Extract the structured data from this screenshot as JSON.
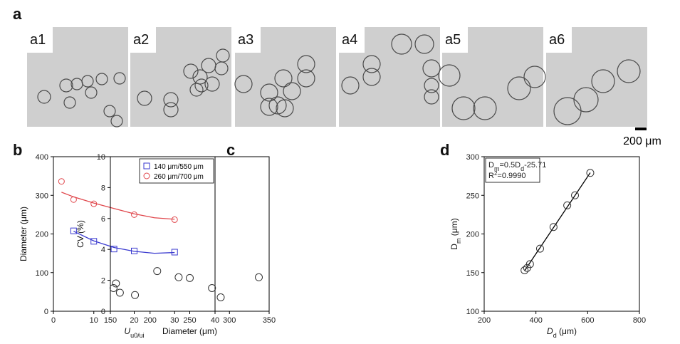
{
  "panels": {
    "a": "a",
    "b": "b",
    "c": "c",
    "d": "d"
  },
  "images": [
    "a1",
    "a2",
    "a3",
    "a4",
    "a5",
    "a6"
  ],
  "scale_bar": "200 μm",
  "chart_data": [
    {
      "type": "scatter",
      "xlabel_parts": [
        "U",
        "u0/ui"
      ],
      "ylabel": "Diameter (μm)",
      "xlim": [
        0,
        40
      ],
      "xticks": [
        0,
        10,
        20,
        30,
        40
      ],
      "ylim": [
        0,
        400
      ],
      "yticks": [
        0,
        100,
        200,
        300,
        400
      ],
      "legend": "top-right",
      "series": [
        {
          "name": "140 μm/550 μm",
          "color": "#3a3acf",
          "marker": "square",
          "x": [
            5,
            10,
            15,
            20,
            30
          ],
          "values": [
            208,
            181,
            161,
            156,
            153
          ]
        },
        {
          "name": "260 μm/700 μm",
          "color": "#e0474c",
          "marker": "circle",
          "x": [
            2,
            5,
            10,
            20,
            30
          ],
          "values": [
            336,
            289,
            278,
            250,
            237
          ]
        }
      ],
      "fits": [
        {
          "color": "#3a3acf",
          "x": [
            5,
            10,
            15,
            20,
            25,
            30
          ],
          "values": [
            207,
            182,
            165,
            155,
            150,
            152
          ]
        },
        {
          "color": "#e0474c",
          "x": [
            2,
            5,
            10,
            15,
            20,
            25,
            30
          ],
          "values": [
            308,
            296,
            280,
            266,
            252,
            242,
            238
          ]
        }
      ]
    },
    {
      "type": "scatter",
      "xlabel": "Diameter (μm)",
      "ylabel": "CV (%)",
      "xlim": [
        150,
        350
      ],
      "xticks": [
        150,
        200,
        250,
        300,
        350
      ],
      "ylim": [
        0,
        10
      ],
      "yticks": [
        0,
        2,
        4,
        6,
        8,
        10
      ],
      "series": [
        {
          "color": "#333333",
          "marker": "circle",
          "x": [
            154,
            157,
            162,
            181,
            209,
            236,
            250,
            278,
            289,
            337
          ],
          "values": [
            1.5,
            1.8,
            1.2,
            1.05,
            2.6,
            2.2,
            2.15,
            1.5,
            0.9,
            2.2
          ]
        }
      ]
    },
    {
      "type": "scatter",
      "xlabel_parts": [
        "D",
        "d",
        " (μm)"
      ],
      "ylabel_parts": [
        "D",
        "m",
        " (μm)"
      ],
      "xlim": [
        200,
        800
      ],
      "xticks": [
        200,
        400,
        600,
        800
      ],
      "ylim": [
        100,
        300
      ],
      "yticks": [
        100,
        150,
        200,
        250,
        300
      ],
      "equation_parts": [
        "D",
        "m",
        "=0.5",
        "D",
        "d",
        "-25.71"
      ],
      "r2_parts": [
        "R",
        "2",
        "=0.9990"
      ],
      "series": [
        {
          "color": "#333333",
          "marker": "circle",
          "x": [
            356,
            366,
            377,
            416,
            468,
            521,
            551,
            610
          ],
          "values": [
            153,
            156,
            161,
            181,
            209,
            237,
            250,
            279
          ]
        }
      ],
      "fits": [
        {
          "color": "#000000",
          "x": [
            356,
            610
          ],
          "values": [
            152.29,
            279.29
          ]
        }
      ]
    }
  ]
}
